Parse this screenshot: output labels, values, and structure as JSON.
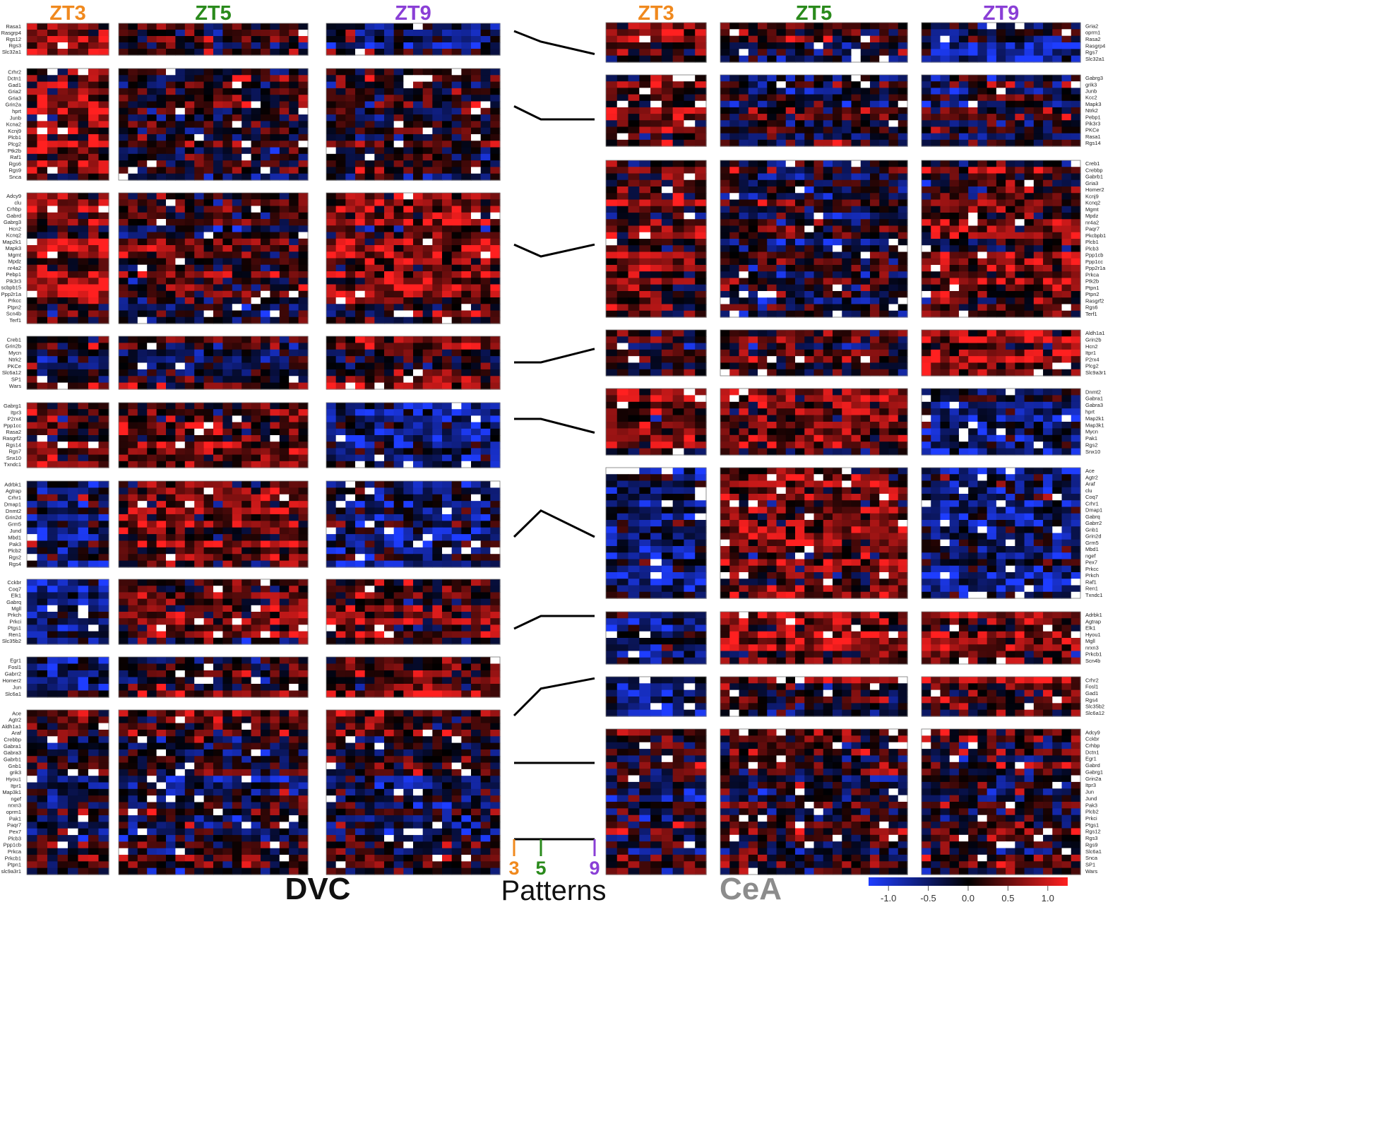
{
  "chart_data": {
    "type": "heatmap",
    "time_points": [
      "ZT3",
      "ZT5",
      "ZT9"
    ],
    "time_colors": {
      "ZT3": "#f0891e",
      "ZT5": "#2a8a1c",
      "ZT9": "#8a3fd6"
    },
    "regions": [
      {
        "name": "DVC",
        "color": "#111111"
      },
      {
        "name": "CeA",
        "color": "#8c8c8c"
      }
    ],
    "patterns_title": "Patterns",
    "pattern_axis_labels": [
      "3",
      "5",
      "9"
    ],
    "colorbar": {
      "min": -1.25,
      "max": 1.25,
      "tick_values": [
        -1.0,
        -0.5,
        0.0,
        0.5,
        1.0
      ],
      "tick_labels": [
        "-1.0",
        "-0.5",
        "0.0",
        "0.5",
        "1.0"
      ],
      "low_color": "#1e3dff",
      "mid_color": "#000000",
      "high_color": "#ff2020"
    },
    "patterns": [
      {
        "values": [
          0.8,
          0.5,
          0.15
        ]
      },
      {
        "values": [
          0.8,
          0.5,
          0.5
        ]
      },
      {
        "values": [
          0.78,
          0.5,
          0.78
        ]
      },
      {
        "values": [
          0.5,
          0.5,
          0.82
        ]
      },
      {
        "values": [
          0.8,
          0.8,
          0.15
        ]
      },
      {
        "values": [
          0.2,
          0.82,
          0.2
        ]
      },
      {
        "values": [
          0.2,
          0.8,
          0.8
        ]
      },
      {
        "values": [
          0.2,
          0.65,
          0.82
        ]
      },
      {
        "values": [
          0.5,
          0.5,
          0.5
        ]
      }
    ],
    "dvc_clusters": [
      {
        "genes": [
          "Rasa1",
          "Rasgrp4",
          "Rgs12",
          "Rgs3",
          "Slc32a1"
        ]
      },
      {
        "genes": [
          "Crhr2",
          "Dctn1",
          "Gad1",
          "Gria2",
          "Gria3",
          "Grin2a",
          "hprt",
          "Junb",
          "Kcna2",
          "Kcnj9",
          "Plcb1",
          "Plcg2",
          "Ptk2b",
          "Raf1",
          "Rgs6",
          "Rgs9",
          "Snca"
        ]
      },
      {
        "genes": [
          "Adcy9",
          "clu",
          "Crhbp",
          "Gabrd",
          "Gabrg3",
          "Hcn2",
          "Kcnq2",
          "Map2k1",
          "Mapk3",
          "Mgmt",
          "Mpdz",
          "nr4a2",
          "Pebp1",
          "Pik3r3",
          "scbpb15",
          "Ppp2r1a",
          "Prkcc",
          "Ptpn2",
          "Scn4b",
          "Terf1"
        ]
      },
      {
        "genes": [
          "Creb1",
          "Grin2b",
          "Mycn",
          "Ntrk2",
          "PKCe",
          "Slc6a12",
          "SP1",
          "Wars"
        ]
      },
      {
        "genes": [
          "Gabrg1",
          "Itpr3",
          "P2rx4",
          "Ppp1cc",
          "Rasa2",
          "Rasgrf2",
          "Rgs14",
          "Rgs7",
          "Snx10",
          "Txndc1"
        ]
      },
      {
        "genes": [
          "Adrbk1",
          "Agtrap",
          "Crhr1",
          "Dmap1",
          "Dnmt2",
          "Grin2d",
          "Grm5",
          "Jund",
          "Mbd1",
          "Pak3",
          "Plcb2",
          "Rgs2",
          "Rgs4"
        ]
      },
      {
        "genes": [
          "Cckbr",
          "Coq7",
          "Elk1",
          "Gabrq",
          "Mgll",
          "Prkch",
          "Prkci",
          "Ptgs1",
          "Ren1",
          "Slc35b2"
        ]
      },
      {
        "genes": [
          "Egr1",
          "Fosl1",
          "Gabrr2",
          "Homer2",
          "Jun",
          "Slc6a1"
        ]
      },
      {
        "genes": [
          "Ace",
          "Agtr2",
          "Aldh1a1",
          "Araf",
          "Crebbp",
          "Gabra1",
          "Gabra3",
          "Gabrb1",
          "Gnb1",
          "grik3",
          "Hyou1",
          "Itpr1",
          "Map3k1",
          "ngef",
          "nrxn3",
          "oprm1",
          "Pak1",
          "Paqr7",
          "Pex7",
          "Plcb3",
          "Ppp1cb",
          "Prkca",
          "Prkcb1",
          "Ptpn1",
          "slc9a3r1"
        ]
      }
    ],
    "cea_clusters": [
      {
        "genes": [
          "Gria2",
          "oprm1",
          "Rasa2",
          "Rasgrp4",
          "Rgs7",
          "Slc32a1"
        ]
      },
      {
        "genes": [
          "Gabrg3",
          "grik3",
          "Junb",
          "Kcc2",
          "Mapk3",
          "Ntrk2",
          "Pebp1",
          "Pik3r3",
          "PKCe",
          "Rasa1",
          "Rgs14"
        ]
      },
      {
        "genes": [
          "Creb1",
          "Crebbp",
          "Gabrb1",
          "Gria3",
          "Homer2",
          "Kcnj9",
          "Kcnq2",
          "Mgmt",
          "Mpdz",
          "nr4a2",
          "Paqr7",
          "Pkcbpb1",
          "Plcb1",
          "Plcb3",
          "Ppp1cb",
          "Ppp1cc",
          "Ppp2r1a",
          "Prkca",
          "Ptk2b",
          "Ptpn1",
          "Ptpn2",
          "Rasgrf2",
          "Rgs6",
          "Terf1"
        ]
      },
      {
        "genes": [
          "Aldh1a1",
          "Grin2b",
          "Hcn2",
          "Itpr1",
          "P2rx4",
          "Plcg2",
          "Slc9a3r1"
        ]
      },
      {
        "genes": [
          "Dnmt2",
          "Gabra1",
          "Gabra3",
          "hprt",
          "Map2k1",
          "Map3k1",
          "Mycn",
          "Pak1",
          "Rgs2",
          "Snx10"
        ]
      },
      {
        "genes": [
          "Ace",
          "Agtr2",
          "Araf",
          "clu",
          "Coq7",
          "Crhr1",
          "Dmap1",
          "Gabrq",
          "Gabrr2",
          "Gnb1",
          "Grin2d",
          "Grm5",
          "Mbd1",
          "ngef",
          "Pex7",
          "Prkcc",
          "Prkch",
          "Raf1",
          "Ren1",
          "Txndc1"
        ]
      },
      {
        "genes": [
          "Adrbk1",
          "Agtrap",
          "Elk1",
          "Hyou1",
          "Mgll",
          "nrxn3",
          "Prkcb1",
          "Scn4b"
        ]
      },
      {
        "genes": [
          "Crhr2",
          "Fosl1",
          "Gad1",
          "Rgs4",
          "Slc35b2",
          "Slc6a12"
        ]
      },
      {
        "genes": [
          "Adcy9",
          "Cckbr",
          "Crhbp",
          "Dctn1",
          "Egr1",
          "Gabrd",
          "Gabrg1",
          "Grin2a",
          "Itpr3",
          "Jun",
          "Jund",
          "Pak3",
          "Plcb2",
          "Prkci",
          "Ptgs1",
          "Rgs12",
          "Rgs3",
          "Rgs9",
          "Slc6a1",
          "Snca",
          "SP1",
          "Wars"
        ]
      }
    ]
  }
}
